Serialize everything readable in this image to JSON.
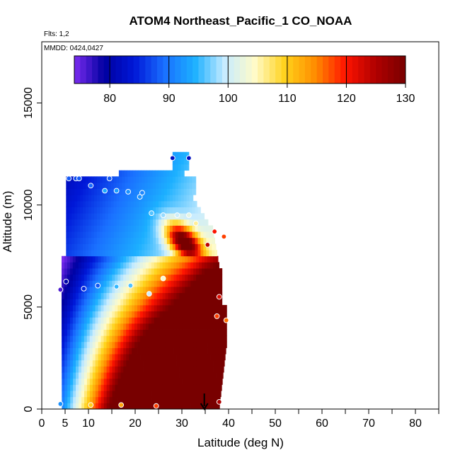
{
  "chart_data": {
    "type": "heatmap",
    "title": "ATOM4 Northeast_Pacific_1 CO_NOAA",
    "flights_note": "Flts: 1,2",
    "dates_note": "MMDD: 0424,0427",
    "xlabel": "Latitude (deg N)",
    "ylabel": "Altitude (m)",
    "xlim": [
      0,
      85
    ],
    "ylim": [
      0,
      18000
    ],
    "x_tick_labels": [
      "0",
      "5",
      "10",
      "20",
      "30",
      "40",
      "50",
      "60",
      "70",
      "80"
    ],
    "y_tick_labels": [
      "0",
      "5000",
      "10000",
      "15000"
    ],
    "colorbar": {
      "range": [
        74,
        130
      ],
      "tick_labels": [
        "80",
        "90",
        "100",
        "110",
        "120",
        "130"
      ],
      "colors": [
        "#7b2cf0",
        "#0000a0",
        "#0018d8",
        "#1a70ff",
        "#1cb0ff",
        "#c8ecff",
        "#fffbc8",
        "#ffd21a",
        "#ff8c00",
        "#ff1400",
        "#b00000",
        "#780000"
      ]
    },
    "flight_track_arrow": {
      "latitude": 34.8,
      "altitude": 0
    },
    "observations": [
      {
        "lat": 4.0,
        "alt": 250,
        "co": 92
      },
      {
        "lat": 10.5,
        "alt": 200,
        "co": 110
      },
      {
        "lat": 17.0,
        "alt": 200,
        "co": 113
      },
      {
        "lat": 24.5,
        "alt": 150,
        "co": 118
      },
      {
        "lat": 38.0,
        "alt": 350,
        "co": 125
      },
      {
        "lat": 4.0,
        "alt": 5850,
        "co": 76
      },
      {
        "lat": 5.2,
        "alt": 6250,
        "co": 80
      },
      {
        "lat": 9.0,
        "alt": 5900,
        "co": 85
      },
      {
        "lat": 12.0,
        "alt": 6050,
        "co": 88
      },
      {
        "lat": 16.0,
        "alt": 6000,
        "co": 95
      },
      {
        "lat": 19.0,
        "alt": 6050,
        "co": 96
      },
      {
        "lat": 23.0,
        "alt": 5650,
        "co": 100
      },
      {
        "lat": 26.0,
        "alt": 6400,
        "co": 104
      },
      {
        "lat": 38.0,
        "alt": 5500,
        "co": 122
      },
      {
        "lat": 37.5,
        "alt": 4550,
        "co": 118
      },
      {
        "lat": 39.5,
        "alt": 4350,
        "co": 116
      },
      {
        "lat": 33.0,
        "alt": 9100,
        "co": 106
      },
      {
        "lat": 35.5,
        "alt": 8050,
        "co": 124
      },
      {
        "lat": 37.0,
        "alt": 8700,
        "co": 120
      },
      {
        "lat": 39.0,
        "alt": 8450,
        "co": 118
      },
      {
        "lat": 23.5,
        "alt": 9600,
        "co": 96
      },
      {
        "lat": 26.0,
        "alt": 9500,
        "co": 98
      },
      {
        "lat": 29.0,
        "alt": 9500,
        "co": 100
      },
      {
        "lat": 31.5,
        "alt": 9500,
        "co": 102
      },
      {
        "lat": 13.5,
        "alt": 10700,
        "co": 94
      },
      {
        "lat": 16.0,
        "alt": 10700,
        "co": 93
      },
      {
        "lat": 18.5,
        "alt": 10650,
        "co": 92
      },
      {
        "lat": 21.0,
        "alt": 10400,
        "co": 92
      },
      {
        "lat": 21.5,
        "alt": 10600,
        "co": 91
      },
      {
        "lat": 10.5,
        "alt": 10950,
        "co": 89
      },
      {
        "lat": 14.5,
        "alt": 11300,
        "co": 88
      },
      {
        "lat": 5.8,
        "alt": 11300,
        "co": 88
      },
      {
        "lat": 7.3,
        "alt": 11300,
        "co": 87
      },
      {
        "lat": 8.0,
        "alt": 11300,
        "co": 88
      },
      {
        "lat": 28.0,
        "alt": 12300,
        "co": 82
      },
      {
        "lat": 31.5,
        "alt": 12300,
        "co": 82
      }
    ]
  }
}
